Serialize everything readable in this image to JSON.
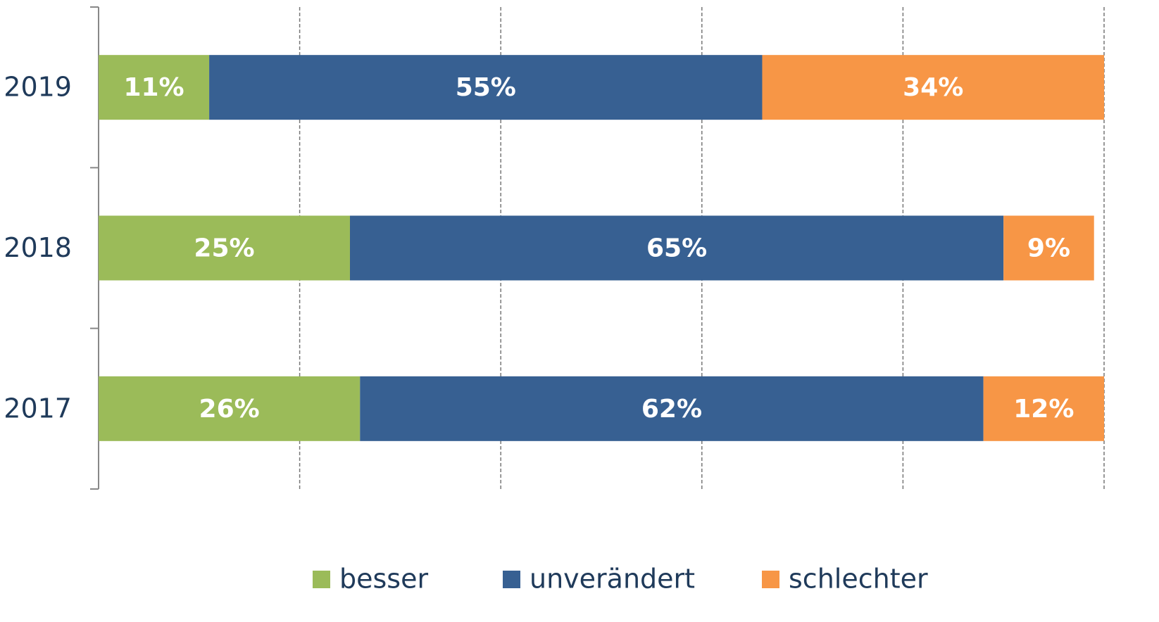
{
  "chart_data": {
    "type": "stacked_bar_horizontal",
    "categories": [
      "2019",
      "2018",
      "2017"
    ],
    "series": [
      {
        "name": "besser",
        "color": "#9bbb59",
        "values": [
          11,
          25,
          26
        ],
        "value_labels": [
          "11%",
          "25%",
          "26%"
        ]
      },
      {
        "name": "unverändert",
        "color": "#376092",
        "values": [
          55,
          65,
          62
        ],
        "value_labels": [
          "55%",
          "65%",
          "62%"
        ]
      },
      {
        "name": "schlechter",
        "color": "#f79646",
        "values": [
          34,
          9,
          12
        ],
        "value_labels": [
          "34%",
          "9%",
          "12%"
        ]
      }
    ],
    "xlim": [
      0,
      100
    ],
    "xticks": [
      0,
      20,
      40,
      60,
      80,
      100
    ],
    "grid": true,
    "legend": "bottom"
  }
}
